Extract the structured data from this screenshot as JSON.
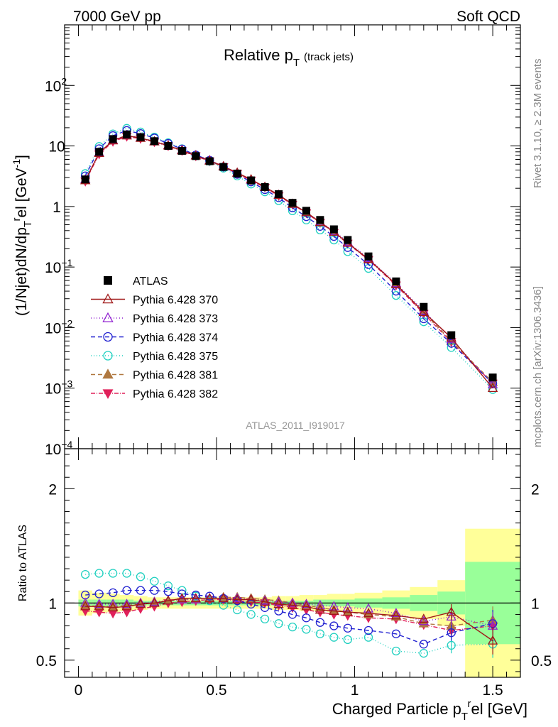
{
  "header": {
    "left": "7000 GeV pp",
    "right": "Soft QCD",
    "side_top": "Rivet 3.1.10, ≥ 2.3M events",
    "side_bottom": "mcplots.cern.ch [arXiv:1306.3436]",
    "analysis": "ATLAS_2011_I919017"
  },
  "chart_data": [
    {
      "type": "line",
      "panel": "main",
      "title_main": "Relative p",
      "title_sub": "T",
      "title_note": "(track jets)",
      "ylabel": "(1/Njet)dN/dp",
      "ylabel_sub": "T",
      "ylabel_sup": "r",
      "ylabel_tail": "el [GeV",
      "ylabel_unit_sup": "-1",
      "ylabel_close": "]",
      "yscale": "log",
      "xlim": [
        -0.05,
        1.6
      ],
      "ylim": [
        0.0001,
        1000
      ],
      "y_ticks": [
        {
          "v": 0.0001,
          "base": "10",
          "exp": "−4"
        },
        {
          "v": 0.001,
          "base": "10",
          "exp": "−3"
        },
        {
          "v": 0.01,
          "base": "10",
          "exp": "−2"
        },
        {
          "v": 0.1,
          "base": "10",
          "exp": "−1"
        },
        {
          "v": 1,
          "base": "1",
          "exp": ""
        },
        {
          "v": 10,
          "base": "10",
          "exp": ""
        },
        {
          "v": 100,
          "base": "10",
          "exp": "2"
        }
      ],
      "legend_position": "lower-left",
      "x": [
        0.025,
        0.075,
        0.125,
        0.175,
        0.225,
        0.275,
        0.325,
        0.375,
        0.425,
        0.475,
        0.525,
        0.575,
        0.625,
        0.675,
        0.725,
        0.775,
        0.825,
        0.875,
        0.925,
        0.975,
        1.05,
        1.15,
        1.25,
        1.35,
        1.5
      ],
      "series": [
        {
          "name": "ATLAS",
          "color": "#000000",
          "marker": "square",
          "dash": "none",
          "values": [
            2.8,
            8.0,
            13.0,
            15.5,
            14.0,
            12.0,
            10.0,
            8.3,
            6.8,
            5.6,
            4.5,
            3.5,
            2.7,
            2.1,
            1.6,
            1.15,
            0.85,
            0.6,
            0.42,
            0.28,
            0.15,
            0.058,
            0.022,
            0.0075,
            0.0015
          ]
        },
        {
          "name": "Pythia 6.428 370",
          "color": "#a01818",
          "marker": "triangle-up-open",
          "dash": "none",
          "values": [
            2.7,
            7.6,
            12.3,
            14.8,
            13.5,
            11.8,
            10.1,
            8.4,
            6.9,
            5.7,
            4.6,
            3.6,
            2.8,
            2.1,
            1.55,
            1.1,
            0.8,
            0.55,
            0.38,
            0.25,
            0.135,
            0.052,
            0.018,
            0.0068,
            0.001
          ]
        },
        {
          "name": "Pythia 6.428 373",
          "color": "#9020d0",
          "marker": "triangle-up-open",
          "dash": "1,3",
          "values": [
            2.8,
            7.8,
            12.5,
            15.0,
            13.7,
            11.9,
            10.2,
            8.5,
            7.0,
            5.8,
            4.6,
            3.6,
            2.75,
            2.1,
            1.55,
            1.1,
            0.8,
            0.56,
            0.39,
            0.26,
            0.14,
            0.054,
            0.019,
            0.0065,
            0.00115
          ]
        },
        {
          "name": "Pythia 6.428 374",
          "color": "#2020d0",
          "marker": "circle-open",
          "dash": "6,4",
          "values": [
            3.2,
            9.0,
            14.8,
            18.0,
            16.0,
            13.5,
            11.0,
            8.9,
            7.1,
            5.8,
            4.5,
            3.4,
            2.55,
            1.9,
            1.4,
            0.95,
            0.68,
            0.47,
            0.32,
            0.21,
            0.11,
            0.04,
            0.014,
            0.0055,
            0.0012
          ]
        },
        {
          "name": "Pythia 6.428 375",
          "color": "#20d0c0",
          "marker": "circle-open",
          "dash": "1,3",
          "values": [
            3.5,
            9.8,
            15.8,
            19.5,
            17.0,
            14.0,
            11.3,
            9.0,
            7.0,
            5.6,
            4.3,
            3.2,
            2.35,
            1.75,
            1.25,
            0.85,
            0.6,
            0.41,
            0.28,
            0.18,
            0.095,
            0.034,
            0.0125,
            0.0047,
            0.00095
          ]
        },
        {
          "name": "Pythia 6.428 381",
          "color": "#b07840",
          "marker": "triangle-up",
          "dash": "6,4",
          "values": [
            2.7,
            7.7,
            12.4,
            15.0,
            13.6,
            11.9,
            10.2,
            8.5,
            7.0,
            5.7,
            4.6,
            3.6,
            2.75,
            2.1,
            1.55,
            1.1,
            0.8,
            0.55,
            0.38,
            0.25,
            0.135,
            0.052,
            0.018,
            0.006,
            0.00125
          ]
        },
        {
          "name": "Pythia 6.428 382",
          "color": "#e0205a",
          "marker": "triangle-down",
          "dash": "6,2,1,2",
          "values": [
            2.6,
            7.3,
            11.8,
            14.3,
            13.2,
            11.6,
            10.0,
            8.3,
            6.8,
            5.6,
            4.5,
            3.5,
            2.7,
            2.05,
            1.5,
            1.08,
            0.78,
            0.54,
            0.37,
            0.245,
            0.132,
            0.05,
            0.017,
            0.0058,
            0.0012
          ]
        }
      ]
    },
    {
      "type": "line",
      "panel": "ratio",
      "ylabel": "Ratio to ATLAS",
      "xlabel": "Charged Particle p",
      "xlabel_sub": "T",
      "xlabel_sup": "r",
      "xlabel_tail": "el [GeV]",
      "xlim": [
        -0.05,
        1.6
      ],
      "ylim": [
        0.35,
        2.35
      ],
      "x_ticks": [
        {
          "v": 0,
          "label": "0"
        },
        {
          "v": 0.5,
          "label": "0.5"
        },
        {
          "v": 1,
          "label": "1"
        },
        {
          "v": 1.5,
          "label": "1.5"
        }
      ],
      "y_ticks_left": [
        {
          "v": 0.5,
          "label": "0.5"
        },
        {
          "v": 1,
          "label": "1"
        },
        {
          "v": 2,
          "label": "2"
        }
      ],
      "y_ticks_right": [
        {
          "v": 0.5,
          "label": "0.5"
        },
        {
          "v": 1,
          "label": "1"
        },
        {
          "v": 2,
          "label": "2"
        }
      ],
      "bands": {
        "green_color": "#99ff99",
        "yellow_color": "#ffff99",
        "bins": [
          {
            "x0": 0.0,
            "x1": 0.05,
            "g": 0.03,
            "y": 0.11
          },
          {
            "x0": 0.05,
            "x1": 0.1,
            "g": 0.03,
            "y": 0.09
          },
          {
            "x0": 0.1,
            "x1": 0.15,
            "g": 0.03,
            "y": 0.08
          },
          {
            "x0": 0.15,
            "x1": 0.2,
            "g": 0.03,
            "y": 0.07
          },
          {
            "x0": 0.2,
            "x1": 0.25,
            "g": 0.02,
            "y": 0.06
          },
          {
            "x0": 0.25,
            "x1": 0.3,
            "g": 0.02,
            "y": 0.05
          },
          {
            "x0": 0.3,
            "x1": 0.35,
            "g": 0.02,
            "y": 0.05
          },
          {
            "x0": 0.35,
            "x1": 0.4,
            "g": 0.02,
            "y": 0.05
          },
          {
            "x0": 0.4,
            "x1": 0.45,
            "g": 0.02,
            "y": 0.05
          },
          {
            "x0": 0.45,
            "x1": 0.5,
            "g": 0.02,
            "y": 0.05
          },
          {
            "x0": 0.5,
            "x1": 0.55,
            "g": 0.02,
            "y": 0.05
          },
          {
            "x0": 0.55,
            "x1": 0.6,
            "g": 0.02,
            "y": 0.05
          },
          {
            "x0": 0.6,
            "x1": 0.65,
            "g": 0.02,
            "y": 0.05
          },
          {
            "x0": 0.65,
            "x1": 0.7,
            "g": 0.02,
            "y": 0.05
          },
          {
            "x0": 0.7,
            "x1": 0.75,
            "g": 0.02,
            "y": 0.06
          },
          {
            "x0": 0.75,
            "x1": 0.8,
            "g": 0.02,
            "y": 0.06
          },
          {
            "x0": 0.8,
            "x1": 0.85,
            "g": 0.02,
            "y": 0.07
          },
          {
            "x0": 0.85,
            "x1": 0.9,
            "g": 0.03,
            "y": 0.07
          },
          {
            "x0": 0.9,
            "x1": 0.95,
            "g": 0.03,
            "y": 0.08
          },
          {
            "x0": 0.95,
            "x1": 1.0,
            "g": 0.03,
            "y": 0.08
          },
          {
            "x0": 1.0,
            "x1": 1.1,
            "g": 0.04,
            "y": 0.09
          },
          {
            "x0": 1.1,
            "x1": 1.2,
            "g": 0.05,
            "y": 0.11
          },
          {
            "x0": 1.2,
            "x1": 1.3,
            "g": 0.07,
            "y": 0.14
          },
          {
            "x0": 1.3,
            "x1": 1.4,
            "g": 0.1,
            "y": 0.2
          },
          {
            "x0": 1.4,
            "x1": 1.6,
            "g": 0.36,
            "y": 0.65
          }
        ]
      },
      "series": [
        {
          "name": "Pythia 6.428 370",
          "values": [
            0.97,
            0.97,
            0.96,
            0.97,
            0.99,
            1.0,
            1.02,
            1.04,
            1.04,
            1.04,
            1.04,
            1.03,
            1.03,
            1.01,
            0.99,
            0.98,
            0.97,
            0.94,
            0.93,
            0.92,
            0.91,
            0.89,
            0.86,
            0.92,
            0.67
          ]
        },
        {
          "name": "Pythia 6.428 373",
          "values": [
            1.0,
            0.99,
            0.99,
            0.99,
            1.0,
            1.01,
            1.02,
            1.03,
            1.03,
            1.04,
            1.04,
            1.04,
            1.03,
            1.02,
            1.01,
            1.0,
            0.99,
            0.98,
            0.97,
            0.96,
            0.95,
            0.91,
            0.84,
            0.88,
            0.8
          ]
        },
        {
          "name": "Pythia 6.428 374",
          "values": [
            1.07,
            1.08,
            1.09,
            1.11,
            1.11,
            1.11,
            1.1,
            1.08,
            1.07,
            1.06,
            1.04,
            1.02,
            0.99,
            0.96,
            0.93,
            0.9,
            0.87,
            0.83,
            0.8,
            0.78,
            0.76,
            0.73,
            0.64,
            0.74,
            0.82
          ]
        },
        {
          "name": "Pythia 6.428 375",
          "values": [
            1.25,
            1.26,
            1.26,
            1.26,
            1.23,
            1.19,
            1.15,
            1.11,
            1.06,
            1.02,
            0.98,
            0.94,
            0.9,
            0.86,
            0.82,
            0.79,
            0.77,
            0.73,
            0.7,
            0.68,
            0.7,
            0.58,
            0.56,
            0.63,
            0.64
          ]
        },
        {
          "name": "Pythia 6.428 381",
          "values": [
            0.98,
            0.97,
            0.97,
            0.98,
            0.99,
            1.0,
            1.02,
            1.03,
            1.04,
            1.04,
            1.05,
            1.05,
            1.04,
            1.03,
            1.02,
            1.0,
            0.98,
            0.96,
            0.94,
            0.92,
            0.9,
            0.88,
            0.82,
            0.8,
            0.85
          ]
        },
        {
          "name": "Pythia 6.428 382",
          "values": [
            0.93,
            0.92,
            0.91,
            0.92,
            0.95,
            0.97,
            1.0,
            1.01,
            1.02,
            1.03,
            1.03,
            1.02,
            1.01,
            1.0,
            0.98,
            0.96,
            0.94,
            0.92,
            0.9,
            0.89,
            0.87,
            0.86,
            0.81,
            0.76,
            0.8
          ]
        }
      ]
    }
  ]
}
